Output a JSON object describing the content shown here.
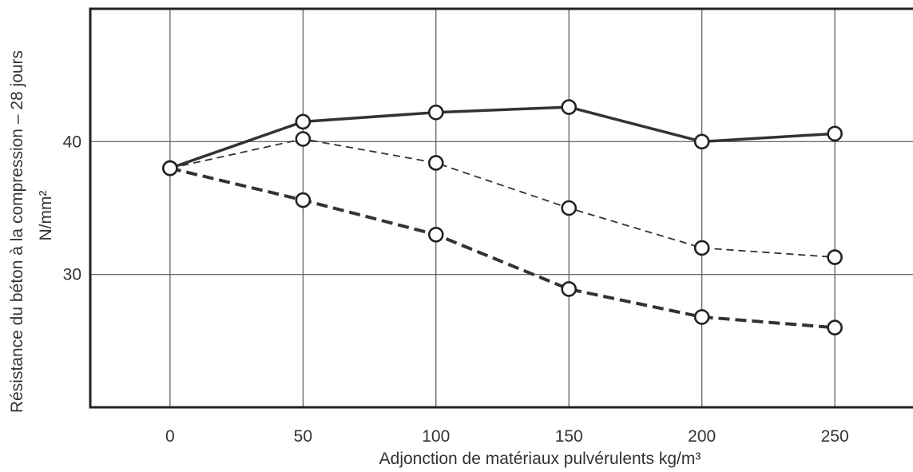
{
  "chart_data": {
    "type": "line",
    "title": "",
    "xlabel": "Adjonction de matériaux pulvérulents kg/m³",
    "ylabel": "Résistance du béton à la compression – 28 jours",
    "yunit": "N/mm²",
    "x": [
      0,
      50,
      100,
      150,
      200,
      250
    ],
    "xlim": [
      -30,
      280
    ],
    "ylim": [
      20,
      50
    ],
    "xticks": [
      "0",
      "50",
      "100",
      "150",
      "200",
      "250"
    ],
    "yticks": [
      "30",
      "40"
    ],
    "yticks_values": [
      30,
      40
    ],
    "grid": true,
    "series": [
      {
        "values": [
          38,
          41.5,
          42.2,
          42.6,
          40,
          40.6
        ],
        "style": "solid",
        "color": "#333333"
      },
      {
        "values": [
          38,
          40.2,
          38.4,
          35,
          32,
          31.3
        ],
        "style": "thin-dashed",
        "color": "#333333"
      },
      {
        "values": [
          38,
          35.6,
          33,
          28.9,
          26.8,
          26
        ],
        "style": "thick-dashed",
        "color": "#333333"
      }
    ]
  }
}
